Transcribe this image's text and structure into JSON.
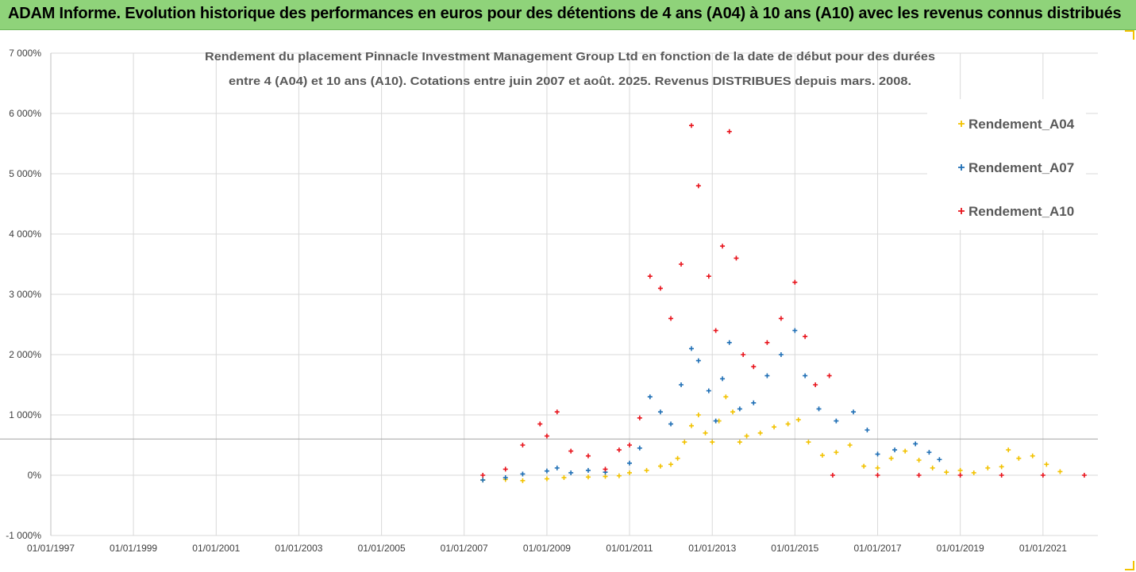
{
  "banner": {
    "title": "ADAM Informe. Evolution historique des performances en euros pour des détentions de 4 ans (A04) à 10 ans (A10) avec les revenus connus distribués"
  },
  "colors": {
    "banner_bg": "#8fd37a",
    "A04": "#f2c200",
    "A07": "#1f6fb5",
    "A10": "#e8141c"
  },
  "chart_data": {
    "type": "scatter",
    "title_lines": [
      "Rendement du placement Pinnacle Investment Management Group Ltd en fonction de la date de début pour des durées",
      "entre 4 (A04) et 10 ans (A10). Cotations entre juin 2007 et août. 2025. Revenus DISTRIBUES depuis mars. 2008."
    ],
    "xlim": [
      "1997-01-01",
      "2022-05-01"
    ],
    "x_ticks": [
      "01/01/1997",
      "01/01/1999",
      "01/01/2001",
      "01/01/2003",
      "01/01/2005",
      "01/01/2007",
      "01/01/2009",
      "01/01/2011",
      "01/01/2013",
      "01/01/2015",
      "01/01/2017",
      "01/01/2019",
      "01/01/2021"
    ],
    "ylim": [
      -1000,
      7000
    ],
    "y_ticks": [
      "-1 000%",
      "0%",
      "1 000%",
      "2 000%",
      "3 000%",
      "4 000%",
      "5 000%",
      "6 000%",
      "7 000%"
    ],
    "y_tick_values": [
      -1000,
      0,
      1000,
      2000,
      3000,
      4000,
      5000,
      6000,
      7000
    ],
    "reference_line_y": 600,
    "grid": true,
    "legend_position": "top-right",
    "series": [
      {
        "name": "Rendement_A04",
        "color": "#f2c200",
        "points": [
          [
            "2007-06-15",
            -80
          ],
          [
            "2008-01-01",
            -70
          ],
          [
            "2008-06-01",
            -90
          ],
          [
            "2009-01-01",
            -60
          ],
          [
            "2009-06-01",
            -40
          ],
          [
            "2010-01-01",
            -30
          ],
          [
            "2010-06-01",
            -20
          ],
          [
            "2010-10-01",
            -10
          ],
          [
            "2011-01-01",
            40
          ],
          [
            "2011-06-01",
            80
          ],
          [
            "2011-10-01",
            150
          ],
          [
            "2012-01-01",
            180
          ],
          [
            "2012-03-01",
            280
          ],
          [
            "2012-05-01",
            550
          ],
          [
            "2012-07-01",
            820
          ],
          [
            "2012-09-01",
            1000
          ],
          [
            "2012-11-01",
            700
          ],
          [
            "2013-01-01",
            550
          ],
          [
            "2013-03-01",
            900
          ],
          [
            "2013-05-01",
            1300
          ],
          [
            "2013-07-01",
            1050
          ],
          [
            "2013-09-01",
            550
          ],
          [
            "2013-11-01",
            650
          ],
          [
            "2014-03-01",
            700
          ],
          [
            "2014-07-01",
            800
          ],
          [
            "2014-11-01",
            850
          ],
          [
            "2015-02-01",
            920
          ],
          [
            "2015-05-01",
            550
          ],
          [
            "2015-09-01",
            330
          ],
          [
            "2016-01-01",
            380
          ],
          [
            "2016-05-01",
            500
          ],
          [
            "2016-09-01",
            150
          ],
          [
            "2017-01-01",
            120
          ],
          [
            "2017-05-01",
            280
          ],
          [
            "2017-09-01",
            400
          ],
          [
            "2018-01-01",
            250
          ],
          [
            "2018-05-01",
            120
          ],
          [
            "2018-09-01",
            50
          ],
          [
            "2019-01-01",
            80
          ],
          [
            "2019-05-01",
            40
          ],
          [
            "2019-09-01",
            120
          ],
          [
            "2020-01-01",
            140
          ],
          [
            "2020-03-01",
            420
          ],
          [
            "2020-06-01",
            280
          ],
          [
            "2020-10-01",
            320
          ],
          [
            "2021-02-01",
            180
          ],
          [
            "2021-06-01",
            60
          ]
        ]
      },
      {
        "name": "Rendement_A07",
        "color": "#1f6fb5",
        "points": [
          [
            "2007-06-15",
            -80
          ],
          [
            "2008-01-01",
            -40
          ],
          [
            "2008-06-01",
            20
          ],
          [
            "2009-01-01",
            70
          ],
          [
            "2009-04-01",
            120
          ],
          [
            "2009-08-01",
            40
          ],
          [
            "2010-01-01",
            80
          ],
          [
            "2010-06-01",
            50
          ],
          [
            "2011-01-01",
            200
          ],
          [
            "2011-04-01",
            450
          ],
          [
            "2011-07-01",
            1300
          ],
          [
            "2011-10-01",
            1050
          ],
          [
            "2012-01-01",
            850
          ],
          [
            "2012-04-01",
            1500
          ],
          [
            "2012-07-01",
            2100
          ],
          [
            "2012-09-01",
            1900
          ],
          [
            "2012-12-01",
            1400
          ],
          [
            "2013-02-01",
            900
          ],
          [
            "2013-04-01",
            1600
          ],
          [
            "2013-06-01",
            2200
          ],
          [
            "2013-09-01",
            1100
          ],
          [
            "2014-01-01",
            1200
          ],
          [
            "2014-05-01",
            1650
          ],
          [
            "2014-09-01",
            2000
          ],
          [
            "2015-01-01",
            2400
          ],
          [
            "2015-04-01",
            1650
          ],
          [
            "2015-08-01",
            1100
          ],
          [
            "2016-01-01",
            900
          ],
          [
            "2016-06-01",
            1050
          ],
          [
            "2016-10-01",
            750
          ],
          [
            "2017-01-01",
            350
          ],
          [
            "2017-06-01",
            420
          ],
          [
            "2017-12-01",
            520
          ],
          [
            "2018-04-01",
            380
          ],
          [
            "2018-07-01",
            260
          ]
        ]
      },
      {
        "name": "Rendement_A10",
        "color": "#e8141c",
        "points": [
          [
            "2007-06-15",
            0
          ],
          [
            "2008-01-01",
            100
          ],
          [
            "2008-06-01",
            500
          ],
          [
            "2008-11-01",
            850
          ],
          [
            "2009-01-01",
            650
          ],
          [
            "2009-04-01",
            1050
          ],
          [
            "2009-08-01",
            400
          ],
          [
            "2010-01-01",
            320
          ],
          [
            "2010-06-01",
            100
          ],
          [
            "2010-10-01",
            420
          ],
          [
            "2011-01-01",
            500
          ],
          [
            "2011-04-01",
            950
          ],
          [
            "2011-07-01",
            3300
          ],
          [
            "2011-10-01",
            3100
          ],
          [
            "2012-01-01",
            2600
          ],
          [
            "2012-04-01",
            3500
          ],
          [
            "2012-07-01",
            5800
          ],
          [
            "2012-09-01",
            4800
          ],
          [
            "2012-12-01",
            3300
          ],
          [
            "2013-02-01",
            2400
          ],
          [
            "2013-04-01",
            3800
          ],
          [
            "2013-06-01",
            5700
          ],
          [
            "2013-08-01",
            3600
          ],
          [
            "2013-10-01",
            2000
          ],
          [
            "2014-01-01",
            1800
          ],
          [
            "2014-05-01",
            2200
          ],
          [
            "2014-09-01",
            2600
          ],
          [
            "2015-01-01",
            3200
          ],
          [
            "2015-04-01",
            2300
          ],
          [
            "2015-07-01",
            1500
          ],
          [
            "2015-11-01",
            1650
          ],
          [
            "2015-12-01",
            0
          ],
          [
            "2017-01-01",
            0
          ],
          [
            "2018-01-01",
            0
          ],
          [
            "2019-01-01",
            0
          ],
          [
            "2020-01-01",
            0
          ],
          [
            "2021-01-01",
            0
          ],
          [
            "2022-01-01",
            0
          ]
        ]
      }
    ]
  }
}
